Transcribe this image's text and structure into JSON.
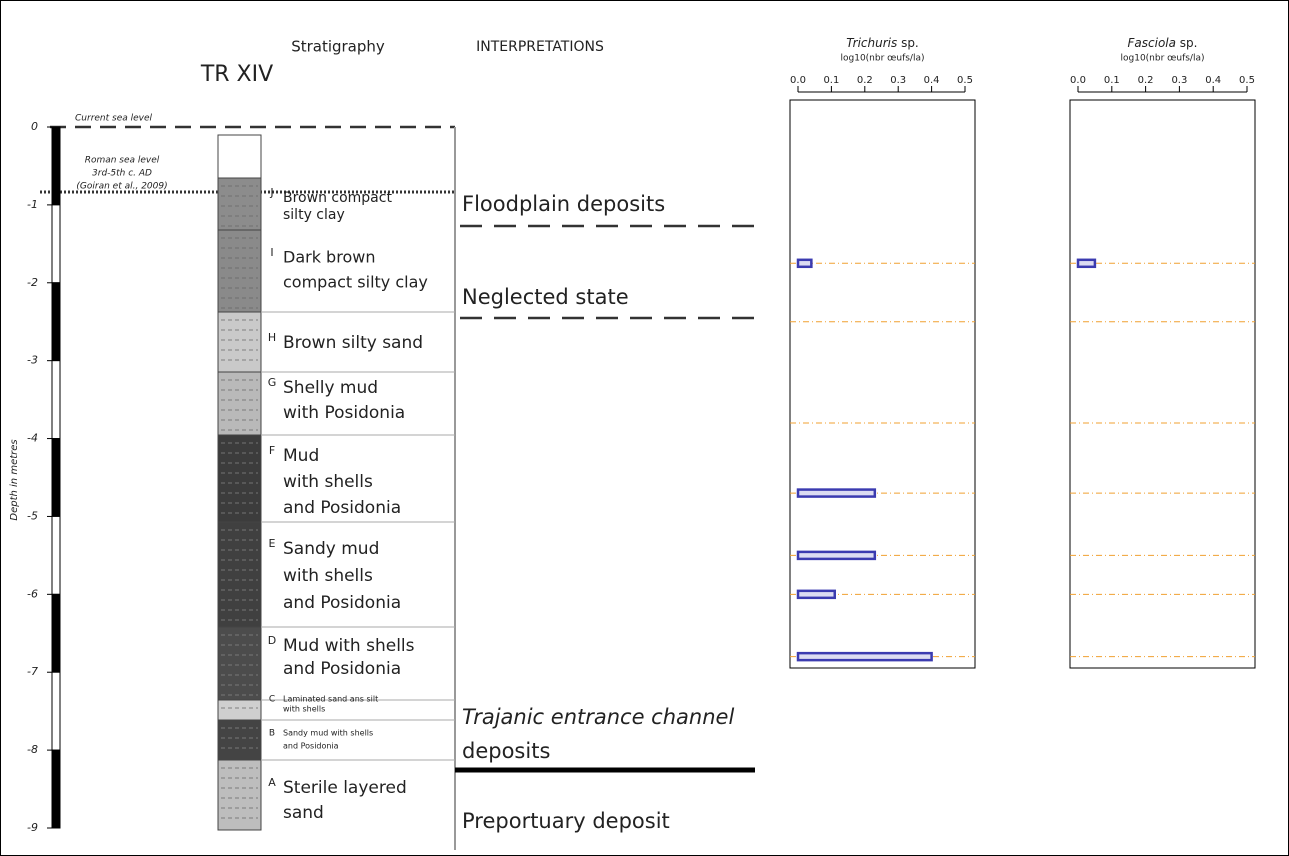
{
  "stratigraphy": {
    "title": "TR XIV",
    "column_heading": "Stratigraphy",
    "interpretations_heading": "INTERPRETATIONS",
    "axis_label": "Depth in metres",
    "ylim": [
      0,
      -9
    ],
    "yticks": [
      0,
      -1,
      -2,
      -3,
      -4,
      -5,
      -6,
      -7,
      -8,
      -9
    ],
    "current_sea_level": "Current sea level",
    "roman_sea_level": [
      "Roman sea level",
      "3rd-5th c. AD",
      "(Goiran et al., 2009)"
    ],
    "layers": [
      {
        "letter": "J",
        "lines": [
          "Brown compact",
          "silty clay"
        ]
      },
      {
        "letter": "I",
        "lines": [
          "Dark brown",
          "compact silty clay"
        ]
      },
      {
        "letter": "H",
        "lines": [
          "Brown silty sand"
        ]
      },
      {
        "letter": "G",
        "lines": [
          "Shelly mud",
          "with Posidonia"
        ]
      },
      {
        "letter": "F",
        "lines": [
          "Mud",
          "with shells",
          "and Posidonia"
        ]
      },
      {
        "letter": "E",
        "lines": [
          "Sandy mud",
          "with shells",
          "and Posidonia"
        ]
      },
      {
        "letter": "D",
        "lines": [
          "Mud with shells",
          "and Posidonia"
        ]
      },
      {
        "letter": "C",
        "lines": [
          "Laminated sand ans silt",
          "with shells"
        ]
      },
      {
        "letter": "B",
        "lines": [
          "Sandy mud with shells",
          "and Posidonia"
        ]
      },
      {
        "letter": "A",
        "lines": [
          "Sterile layered",
          "sand"
        ]
      }
    ],
    "interpretations": [
      {
        "lines": [
          "Floodplain deposits"
        ]
      },
      {
        "lines": [
          "Neglected state"
        ]
      },
      {
        "lines": [
          "Trajanic entrance channel",
          "deposits"
        ]
      },
      {
        "lines": [
          "Preportuary deposit"
        ]
      }
    ]
  },
  "chart_data": [
    {
      "type": "bar",
      "orientation": "horizontal",
      "title": [
        "Trichuris",
        "sp."
      ],
      "subtitle": "log10(nbr œufs/la)",
      "y": [
        -1.75,
        -2.5,
        -3.8,
        -4.7,
        -5.5,
        -6.0,
        -6.8
      ],
      "values": [
        0.04,
        0,
        0,
        0.23,
        0.23,
        0.11,
        0.4
      ],
      "color": "#3b3bb0",
      "xlim": [
        0,
        0.5
      ],
      "xticks": [
        {
          "value": 0,
          "label": "0.0"
        },
        {
          "value": 0.1,
          "label": "0.1"
        },
        {
          "value": 0.2,
          "label": "0.2"
        },
        {
          "value": 0.3,
          "label": "0.3"
        },
        {
          "value": 0.4,
          "label": "0.4"
        },
        {
          "value": 0.5,
          "label": "0.5"
        }
      ]
    },
    {
      "type": "bar",
      "orientation": "horizontal",
      "title": [
        "Fasciola",
        "sp."
      ],
      "subtitle": "log10(nbr œufs/la)",
      "y": [
        -1.75,
        -2.5,
        -3.8,
        -4.7,
        -5.5,
        -6.0,
        -6.8
      ],
      "values": [
        0.05,
        0,
        0,
        0,
        0,
        0,
        0
      ],
      "color": "#3b3bb0",
      "xlim": [
        0,
        0.5
      ],
      "xticks": [
        {
          "value": 0,
          "label": "0.0"
        },
        {
          "value": 0.1,
          "label": "0.1"
        },
        {
          "value": 0.2,
          "label": "0.2"
        },
        {
          "value": 0.3,
          "label": "0.3"
        },
        {
          "value": 0.4,
          "label": "0.4"
        },
        {
          "value": 0.5,
          "label": "0.5"
        }
      ]
    }
  ]
}
